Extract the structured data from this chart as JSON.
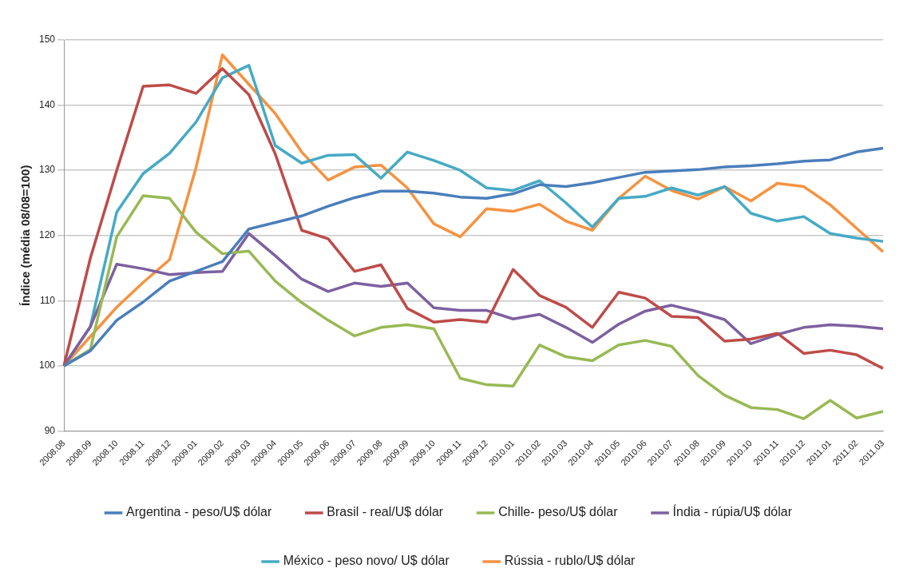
{
  "chart_data": {
    "type": "line",
    "ylabel": "Índice (média 08/08=100)",
    "categories": [
      "2008.08",
      "2008.09",
      "2008.10",
      "2008.11",
      "2008.12",
      "2009.01",
      "2009.02",
      "2009.03",
      "2009.04",
      "2009.05",
      "2009.06",
      "2009.07",
      "2009.08",
      "2009.09",
      "2009.10",
      "2009.11",
      "2009.12",
      "2010.01",
      "2010.02",
      "2010.03",
      "2010.04",
      "2010.05",
      "2010.06",
      "2010.07",
      "2010.08",
      "2010.09",
      "2010.10",
      "2010.11",
      "2010.12",
      "2011.01",
      "2011.02",
      "2011.03"
    ],
    "series": [
      {
        "name": "Argentina - peso/U$ dólar",
        "color": "#4a7ebb",
        "values": [
          100,
          102.3,
          107,
          109.8,
          113,
          114.5,
          116,
          121,
          122,
          123,
          124.5,
          125.8,
          126.8,
          126.8,
          126.5,
          125.9,
          125.7,
          126.4,
          127.8,
          127.5,
          128.1,
          128.9,
          129.7,
          129.9,
          130.1,
          130.5,
          130.7,
          131,
          131.4,
          131.6,
          132.8,
          133.4
        ]
      },
      {
        "name": "Brasil - real/U$ dólar",
        "color": "#be4b48",
        "values": [
          100,
          116.5,
          130,
          142.9,
          143.1,
          141.8,
          145.6,
          141.6,
          132.5,
          120.8,
          119.5,
          114.5,
          115.5,
          108.8,
          106.7,
          107.1,
          106.7,
          114.8,
          110.8,
          109,
          105.9,
          111.3,
          110.4,
          107.6,
          107.4,
          103.8,
          104.1,
          105,
          101.9,
          102.4,
          101.7,
          99.6
        ]
      },
      {
        "name": "Chille- peso/U$ dólar",
        "color": "#98b954",
        "values": [
          100,
          102.5,
          119.8,
          126.1,
          125.7,
          120.5,
          117.2,
          117.6,
          113,
          109.7,
          107,
          104.6,
          105.9,
          106.3,
          105.7,
          98.1,
          97.1,
          96.9,
          103.2,
          101.4,
          100.8,
          103.2,
          103.9,
          103,
          98.5,
          95.5,
          93.6,
          93.3,
          91.9,
          94.7,
          92,
          93
        ]
      },
      {
        "name": "Índia - rúpia/U$ dólar",
        "color": "#7d60a0",
        "values": [
          100,
          106,
          115.6,
          114.9,
          114,
          114.3,
          114.5,
          120.3,
          116.9,
          113.3,
          111.4,
          112.7,
          112.2,
          112.7,
          108.9,
          108.5,
          108.5,
          107.2,
          107.9,
          105.9,
          103.6,
          106.4,
          108.4,
          109.3,
          108.3,
          107.1,
          103.4,
          104.8,
          105.9,
          106.3,
          106.1,
          105.7
        ]
      },
      {
        "name": "México - peso novo/ U$ dólar",
        "color": "#46aac5",
        "values": [
          100,
          106,
          123.6,
          129.5,
          132.6,
          137.4,
          144.2,
          146.1,
          133.8,
          131.1,
          132.3,
          132.4,
          128.8,
          132.8,
          131.5,
          130,
          127.3,
          126.9,
          128.4,
          125,
          121.3,
          125.7,
          126,
          127.3,
          126.2,
          127.5,
          123.4,
          122.2,
          122.9,
          120.3,
          119.6,
          119.1
        ]
      },
      {
        "name": "Rússia - rublo/U$ dólar",
        "color": "#f69240",
        "values": [
          100,
          104.5,
          109,
          112.8,
          116.3,
          130.4,
          147.7,
          143.2,
          138.7,
          132.8,
          128.5,
          130.5,
          130.8,
          127.3,
          121.8,
          119.8,
          124.1,
          123.7,
          124.8,
          122.2,
          120.8,
          125.7,
          129.1,
          126.9,
          125.6,
          127.5,
          125.3,
          128,
          127.5,
          124.7,
          121.1,
          117.5
        ]
      }
    ],
    "ylim": [
      90,
      150
    ],
    "yticks": [
      90,
      100,
      110,
      120,
      130,
      140,
      150
    ],
    "grid": "y",
    "legend": "bottom",
    "marker": "none",
    "line_style": "solid"
  }
}
